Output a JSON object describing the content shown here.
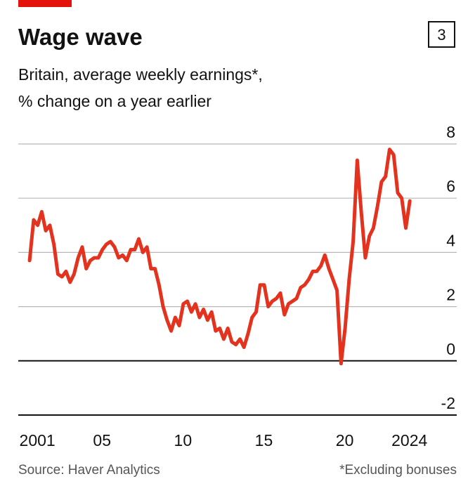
{
  "chart_data": {
    "type": "line",
    "title": "Wage wave",
    "badge": "3",
    "subtitle": [
      "Britain, average weekly earnings*,",
      "% change on a year earlier"
    ],
    "source": "Source: Haver Analytics",
    "note": "*Excluding bonuses",
    "color": "#e3331f",
    "x": [
      2001.0,
      2001.25,
      2001.5,
      2001.75,
      2002.0,
      2002.25,
      2002.5,
      2002.75,
      2003.0,
      2003.25,
      2003.5,
      2003.75,
      2004.0,
      2004.25,
      2004.5,
      2004.75,
      2005.0,
      2005.25,
      2005.5,
      2005.75,
      2006.0,
      2006.25,
      2006.5,
      2006.75,
      2007.0,
      2007.25,
      2007.5,
      2007.75,
      2008.0,
      2008.25,
      2008.5,
      2008.75,
      2009.0,
      2009.25,
      2009.5,
      2009.75,
      2010.0,
      2010.25,
      2010.5,
      2010.75,
      2011.0,
      2011.25,
      2011.5,
      2011.75,
      2012.0,
      2012.25,
      2012.5,
      2012.75,
      2013.0,
      2013.25,
      2013.5,
      2013.75,
      2014.0,
      2014.25,
      2014.5,
      2014.75,
      2015.0,
      2015.25,
      2015.5,
      2015.75,
      2016.0,
      2016.25,
      2016.5,
      2016.75,
      2017.0,
      2017.25,
      2017.5,
      2017.75,
      2018.0,
      2018.25,
      2018.5,
      2018.75,
      2019.0,
      2019.25,
      2019.5,
      2019.75,
      2020.0,
      2020.25,
      2020.5,
      2020.75,
      2021.0,
      2021.25,
      2021.5,
      2021.75,
      2022.0,
      2022.25,
      2022.5,
      2022.75,
      2023.0,
      2023.25,
      2023.5,
      2023.75,
      2024.0,
      2024.25,
      2024.5
    ],
    "values": [
      3.7,
      5.2,
      5.0,
      5.5,
      4.8,
      5.0,
      4.3,
      3.2,
      3.1,
      3.3,
      2.9,
      3.2,
      3.8,
      4.2,
      3.4,
      3.7,
      3.8,
      3.8,
      4.1,
      4.3,
      4.4,
      4.2,
      3.8,
      3.9,
      3.7,
      4.1,
      4.1,
      4.5,
      4.0,
      4.2,
      3.4,
      3.4,
      2.8,
      2.0,
      1.5,
      1.1,
      1.6,
      1.3,
      2.1,
      2.2,
      1.8,
      2.1,
      1.6,
      1.9,
      1.5,
      1.8,
      1.1,
      1.2,
      0.8,
      1.2,
      0.7,
      0.6,
      0.8,
      0.5,
      1.0,
      1.6,
      1.8,
      2.8,
      2.8,
      2.0,
      2.2,
      2.3,
      2.5,
      1.7,
      2.1,
      2.2,
      2.3,
      2.7,
      2.8,
      3.0,
      3.3,
      3.3,
      3.5,
      3.9,
      3.4,
      3.0,
      2.6,
      -0.1,
      1.2,
      3.0,
      4.4,
      7.4,
      5.5,
      3.8,
      4.6,
      4.9,
      5.7,
      6.6,
      6.8,
      7.8,
      7.6,
      6.2,
      6.0,
      4.9,
      5.9
    ],
    "xlim": [
      2000.3,
      2027.4
    ],
    "xticks": [
      {
        "value": 2001,
        "label": "2001"
      },
      {
        "value": 2005,
        "label": "05"
      },
      {
        "value": 2010,
        "label": "10"
      },
      {
        "value": 2015,
        "label": "15"
      },
      {
        "value": 2020,
        "label": "20"
      },
      2024
    ],
    "ylim": [
      -2,
      8
    ],
    "yticks": [
      -2,
      0,
      2,
      4,
      6,
      8
    ],
    "grid": true
  }
}
